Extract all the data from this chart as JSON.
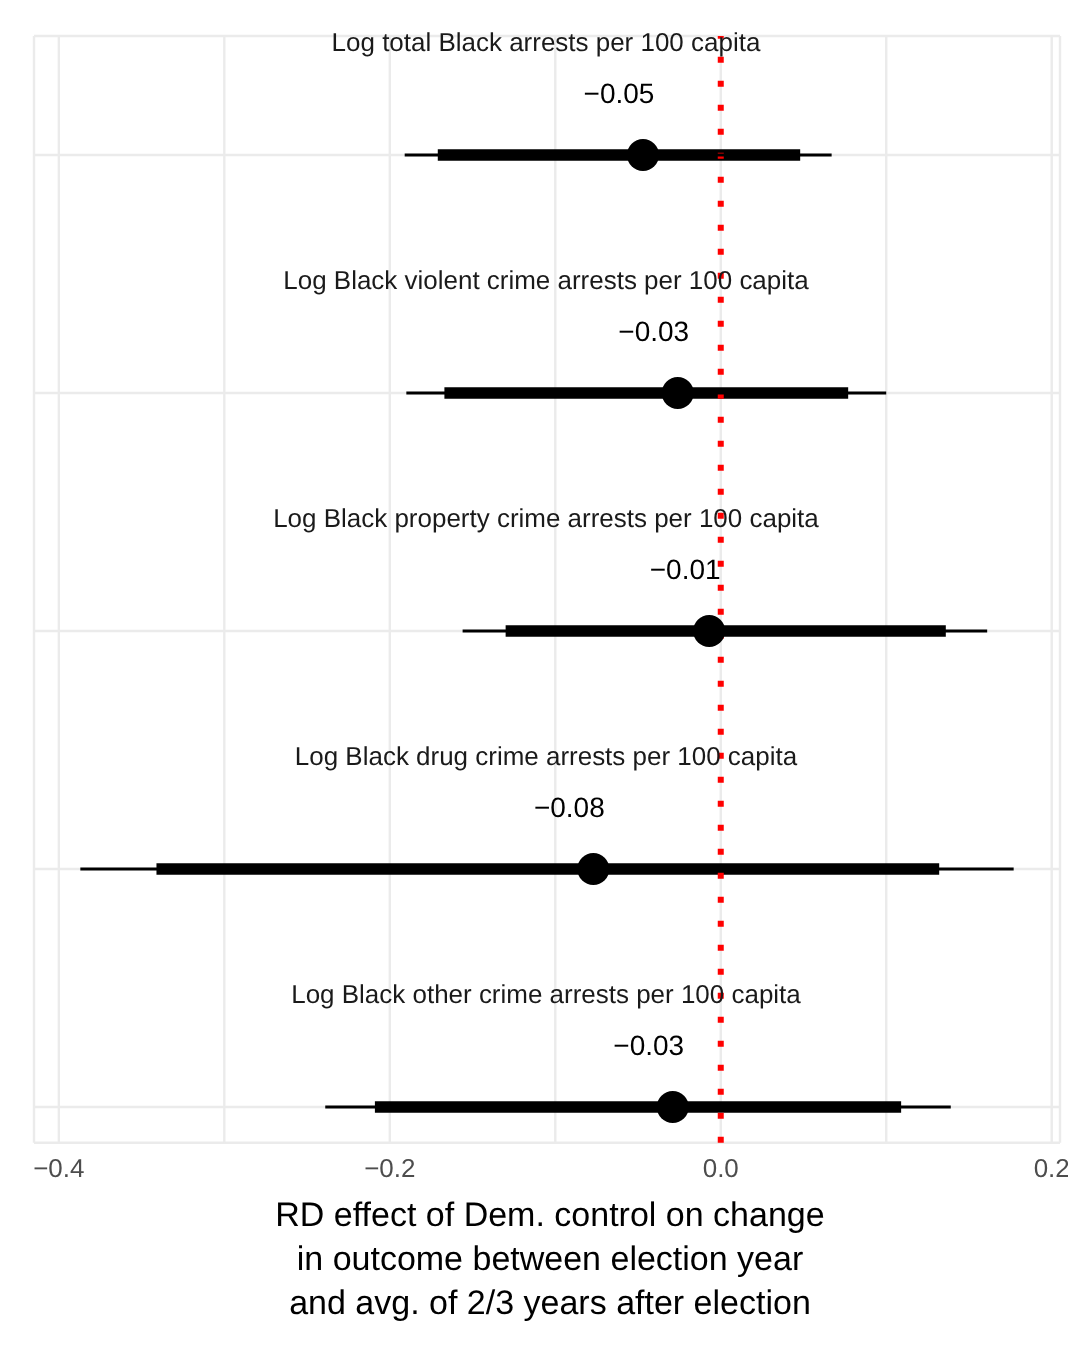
{
  "chart_data": {
    "type": "box",
    "orientation": "horizontal",
    "categories": [
      "Log total Black arrests per 100 capita",
      "Log Black violent crime arrests per 100 capita",
      "Log Black property crime arrests per 100 capita",
      "Log Black drug crime arrests per 100 capita",
      "Log Black other crime arrests per 100 capita"
    ],
    "color": "#000000",
    "boxes": [
      {
        "low": -0.191,
        "q1": -0.171,
        "median": -0.047,
        "q3": 0.048,
        "high": 0.067
      },
      {
        "low": -0.19,
        "q1": -0.167,
        "median": -0.026,
        "q3": 0.077,
        "high": 0.1
      },
      {
        "low": -0.156,
        "q1": -0.13,
        "median": -0.007,
        "q3": 0.136,
        "high": 0.161
      },
      {
        "low": -0.387,
        "q1": -0.341,
        "median": -0.077,
        "q3": 0.132,
        "high": 0.177
      },
      {
        "low": -0.239,
        "q1": -0.209,
        "median": -0.029,
        "q3": 0.109,
        "high": 0.139
      }
    ],
    "value_labels": [
      "−0.05",
      "−0.03",
      "−0.01",
      "−0.08",
      "−0.03"
    ],
    "xlim": [
      -0.415,
      0.205
    ],
    "xticks": [
      {
        "value": -0.4,
        "label": "−0.4"
      },
      {
        "value": -0.3,
        "label": null
      },
      {
        "value": -0.2,
        "label": "−0.2"
      },
      {
        "value": -0.1,
        "label": null
      },
      {
        "value": 0.0,
        "label": "0.0"
      },
      {
        "value": 0.1,
        "label": null
      },
      {
        "value": 0.2,
        "label": "0.2"
      }
    ],
    "grid": true,
    "xlabel": "RD effect of Dem. control on change\nin outcome between election year\nand avg. of 2/3 years after election",
    "ref_lines": [
      {
        "axis": "x",
        "value": 0,
        "color": "#ff0000",
        "line_style": "dotted"
      }
    ]
  }
}
